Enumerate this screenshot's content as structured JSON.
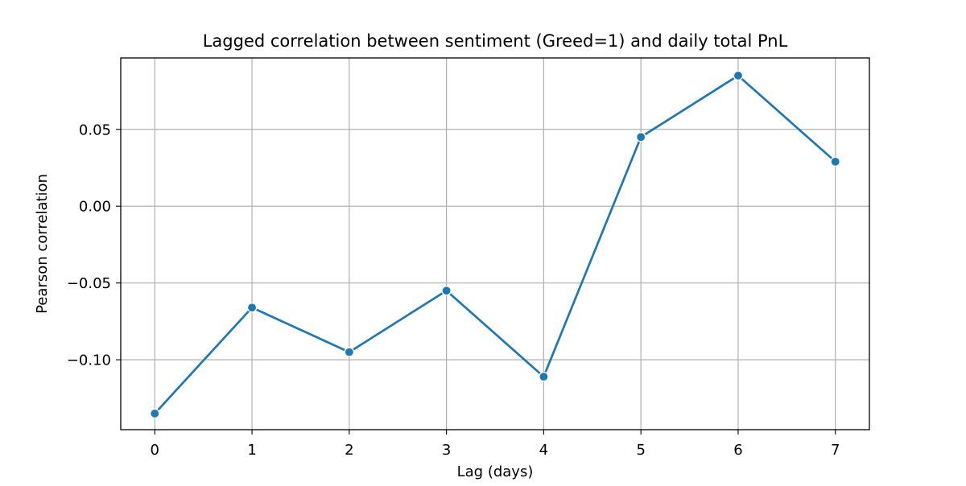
{
  "chart_data": {
    "type": "line",
    "title": "Lagged correlation between sentiment (Greed=1) and daily total PnL",
    "xlabel": "Lag (days)",
    "ylabel": "Pearson correlation",
    "x": [
      0,
      1,
      2,
      3,
      4,
      5,
      6,
      7
    ],
    "series": [
      {
        "values": [
          -0.135,
          -0.066,
          -0.095,
          -0.055,
          -0.111,
          0.045,
          0.085,
          0.029
        ],
        "color": "#1f77b4",
        "marker": "circle"
      }
    ],
    "xlim": [
      -0.35,
      7.35
    ],
    "ylim": [
      -0.1455,
      0.0965
    ],
    "xticks": [
      0,
      1,
      2,
      3,
      4,
      5,
      6,
      7
    ],
    "xtick_labels": [
      "0",
      "1",
      "2",
      "3",
      "4",
      "5",
      "6",
      "7"
    ],
    "yticks": [
      0.05,
      0.0,
      -0.05,
      -0.1
    ],
    "ytick_labels": [
      "0.05",
      "0.00",
      "−0.05",
      "−0.10"
    ],
    "grid": true,
    "legend": "none"
  }
}
